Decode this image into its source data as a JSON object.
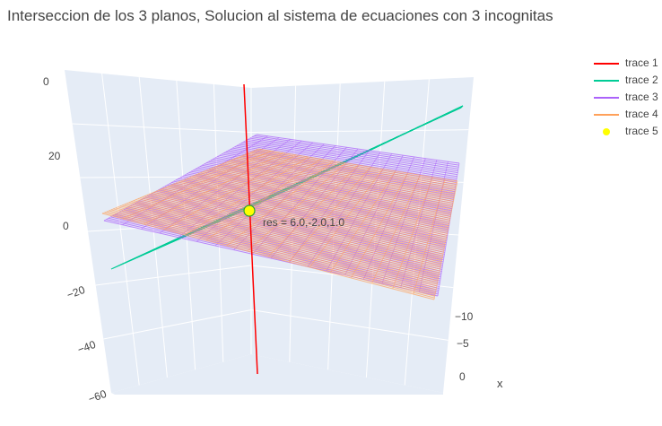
{
  "chart_data": {
    "type": "scatter3d",
    "title": "Interseccion de los 3 planos, Solucion al sistema de ecuaciones con 3 incognitas",
    "axes": {
      "x": {
        "label": "x",
        "ticks": [
          "−10",
          "−5",
          "0"
        ]
      },
      "z": {
        "label": "",
        "ticks": [
          "0",
          "20",
          "0",
          "−20",
          "−40",
          "−60"
        ]
      }
    },
    "series": [
      {
        "name": "trace 1",
        "mode": "lines",
        "color": "#ff0000"
      },
      {
        "name": "trace 2",
        "mode": "lines",
        "color": "#00cc96"
      },
      {
        "name": "trace 3",
        "mode": "lines",
        "color": "#ab63fa"
      },
      {
        "name": "trace 4",
        "mode": "lines",
        "color": "#ffa15a"
      },
      {
        "name": "trace 5",
        "mode": "markers",
        "color": "#ffff00"
      }
    ],
    "annotation": {
      "text": "res = 6.0,-2.0,1.0",
      "point": [
        6.0,
        -2.0,
        1.0
      ]
    }
  }
}
